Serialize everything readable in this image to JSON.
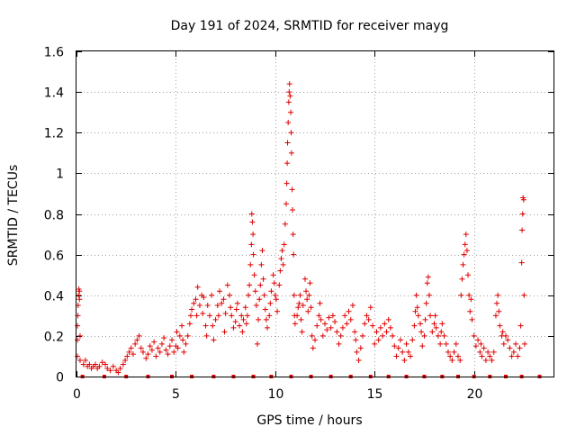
{
  "colors": {
    "series": "#e00000",
    "grid": "#a0a0a0",
    "axis": "#000000"
  },
  "chart_data": {
    "type": "scatter",
    "title": "Day 191 of 2024, SRMTID for receiver mayg",
    "xlabel": "GPS time / hours",
    "ylabel": "SRMTID / TECUs",
    "xlim": [
      0,
      24
    ],
    "ylim": [
      0,
      1.6
    ],
    "xticks": [
      0,
      5,
      10,
      15,
      20
    ],
    "xtick_labels": [
      "0",
      "5",
      "10",
      "15",
      "20"
    ],
    "yticks": [
      0,
      0.2,
      0.4,
      0.6,
      0.8,
      1.0,
      1.2,
      1.4,
      1.6
    ],
    "ytick_labels": [
      "0",
      "0.2",
      "0.4",
      "0.6",
      "0.8",
      "1",
      "1.2",
      "1.4",
      "1.6"
    ],
    "grid": true,
    "legend": "none",
    "marker": "+",
    "series": [
      {
        "name": "SRMTID",
        "points": [
          [
            0.05,
            0.1
          ],
          [
            0.05,
            0.18
          ],
          [
            0.05,
            0.25
          ],
          [
            0.07,
            0.3
          ],
          [
            0.08,
            0.35
          ],
          [
            0.1,
            0.4
          ],
          [
            0.12,
            0.43
          ],
          [
            0.15,
            0.38
          ],
          [
            0.15,
            0.42
          ],
          [
            0.18,
            0.2
          ],
          [
            0.18,
            0.08
          ],
          [
            0.35,
            0.06
          ],
          [
            0.45,
            0.08
          ],
          [
            0.55,
            0.05
          ],
          [
            0.65,
            0.06
          ],
          [
            0.75,
            0.04
          ],
          [
            0.85,
            0.05
          ],
          [
            0.95,
            0.06
          ],
          [
            1.05,
            0.04
          ],
          [
            1.15,
            0.05
          ],
          [
            1.3,
            0.07
          ],
          [
            1.45,
            0.06
          ],
          [
            1.55,
            0.04
          ],
          [
            1.7,
            0.03
          ],
          [
            1.85,
            0.05
          ],
          [
            2.0,
            0.03
          ],
          [
            2.1,
            0.02
          ],
          [
            2.2,
            0.04
          ],
          [
            2.35,
            0.06
          ],
          [
            2.45,
            0.08
          ],
          [
            2.55,
            0.1
          ],
          [
            2.65,
            0.12
          ],
          [
            2.75,
            0.14
          ],
          [
            2.85,
            0.11
          ],
          [
            2.95,
            0.16
          ],
          [
            3.05,
            0.18
          ],
          [
            3.15,
            0.2
          ],
          [
            3.25,
            0.14
          ],
          [
            3.35,
            0.12
          ],
          [
            3.5,
            0.09
          ],
          [
            3.6,
            0.11
          ],
          [
            3.7,
            0.15
          ],
          [
            3.8,
            0.13
          ],
          [
            3.9,
            0.17
          ],
          [
            4.0,
            0.1
          ],
          [
            4.1,
            0.14
          ],
          [
            4.2,
            0.12
          ],
          [
            4.3,
            0.16
          ],
          [
            4.4,
            0.19
          ],
          [
            4.5,
            0.13
          ],
          [
            4.6,
            0.11
          ],
          [
            4.7,
            0.15
          ],
          [
            4.8,
            0.18
          ],
          [
            4.9,
            0.12
          ],
          [
            5.0,
            0.15
          ],
          [
            5.05,
            0.22
          ],
          [
            5.1,
            0.14
          ],
          [
            5.2,
            0.2
          ],
          [
            5.3,
            0.25
          ],
          [
            5.35,
            0.18
          ],
          [
            5.4,
            0.12
          ],
          [
            5.5,
            0.16
          ],
          [
            5.6,
            0.2
          ],
          [
            5.7,
            0.26
          ],
          [
            5.75,
            0.3
          ],
          [
            5.8,
            0.33
          ],
          [
            5.9,
            0.36
          ],
          [
            6.0,
            0.38
          ],
          [
            6.05,
            0.3
          ],
          [
            6.1,
            0.44
          ],
          [
            6.2,
            0.35
          ],
          [
            6.3,
            0.4
          ],
          [
            6.35,
            0.31
          ],
          [
            6.4,
            0.39
          ],
          [
            6.5,
            0.25
          ],
          [
            6.55,
            0.2
          ],
          [
            6.6,
            0.35
          ],
          [
            6.7,
            0.3
          ],
          [
            6.8,
            0.4
          ],
          [
            6.85,
            0.25
          ],
          [
            6.9,
            0.18
          ],
          [
            7.0,
            0.28
          ],
          [
            7.1,
            0.35
          ],
          [
            7.15,
            0.3
          ],
          [
            7.2,
            0.42
          ],
          [
            7.3,
            0.36
          ],
          [
            7.4,
            0.38
          ],
          [
            7.45,
            0.22
          ],
          [
            7.5,
            0.31
          ],
          [
            7.6,
            0.45
          ],
          [
            7.7,
            0.4
          ],
          [
            7.75,
            0.34
          ],
          [
            7.8,
            0.3
          ],
          [
            7.9,
            0.24
          ],
          [
            8.0,
            0.27
          ],
          [
            8.05,
            0.33
          ],
          [
            8.1,
            0.36
          ],
          [
            8.2,
            0.25
          ],
          [
            8.3,
            0.3
          ],
          [
            8.35,
            0.22
          ],
          [
            8.4,
            0.28
          ],
          [
            8.5,
            0.34
          ],
          [
            8.55,
            0.26
          ],
          [
            8.6,
            0.3
          ],
          [
            8.65,
            0.4
          ],
          [
            8.7,
            0.45
          ],
          [
            8.75,
            0.55
          ],
          [
            8.8,
            0.65
          ],
          [
            8.82,
            0.8
          ],
          [
            8.85,
            0.76
          ],
          [
            8.88,
            0.7
          ],
          [
            8.9,
            0.6
          ],
          [
            8.95,
            0.5
          ],
          [
            9.0,
            0.42
          ],
          [
            9.05,
            0.35
          ],
          [
            9.1,
            0.16
          ],
          [
            9.15,
            0.28
          ],
          [
            9.2,
            0.38
          ],
          [
            9.25,
            0.45
          ],
          [
            9.3,
            0.55
          ],
          [
            9.35,
            0.62
          ],
          [
            9.4,
            0.48
          ],
          [
            9.45,
            0.4
          ],
          [
            9.5,
            0.33
          ],
          [
            9.55,
            0.28
          ],
          [
            9.6,
            0.24
          ],
          [
            9.7,
            0.3
          ],
          [
            9.75,
            0.36
          ],
          [
            9.8,
            0.42
          ],
          [
            9.9,
            0.5
          ],
          [
            9.95,
            0.46
          ],
          [
            10.0,
            0.4
          ],
          [
            10.05,
            0.38
          ],
          [
            10.1,
            0.32
          ],
          [
            10.2,
            0.45
          ],
          [
            10.25,
            0.52
          ],
          [
            10.3,
            0.58
          ],
          [
            10.35,
            0.62
          ],
          [
            10.4,
            0.55
          ],
          [
            10.45,
            0.65
          ],
          [
            10.5,
            0.75
          ],
          [
            10.55,
            0.85
          ],
          [
            10.58,
            0.95
          ],
          [
            10.6,
            1.05
          ],
          [
            10.62,
            1.15
          ],
          [
            10.65,
            1.25
          ],
          [
            10.68,
            1.35
          ],
          [
            10.7,
            1.4
          ],
          [
            10.72,
            1.44
          ],
          [
            10.75,
            1.38
          ],
          [
            10.78,
            1.3
          ],
          [
            10.8,
            1.2
          ],
          [
            10.82,
            1.1
          ],
          [
            10.85,
            0.92
          ],
          [
            10.87,
            0.82
          ],
          [
            10.9,
            0.7
          ],
          [
            10.92,
            0.6
          ],
          [
            10.95,
            0.4
          ],
          [
            10.97,
            0.3
          ],
          [
            11.0,
            0.26
          ],
          [
            11.1,
            0.3
          ],
          [
            11.15,
            0.34
          ],
          [
            11.2,
            0.36
          ],
          [
            11.25,
            0.4
          ],
          [
            11.3,
            0.28
          ],
          [
            11.35,
            0.22
          ],
          [
            11.4,
            0.35
          ],
          [
            11.5,
            0.48
          ],
          [
            11.55,
            0.42
          ],
          [
            11.6,
            0.38
          ],
          [
            11.65,
            0.32
          ],
          [
            11.7,
            0.4
          ],
          [
            11.75,
            0.46
          ],
          [
            11.8,
            0.34
          ],
          [
            11.85,
            0.2
          ],
          [
            11.9,
            0.14
          ],
          [
            12.0,
            0.18
          ],
          [
            12.1,
            0.25
          ],
          [
            12.2,
            0.3
          ],
          [
            12.25,
            0.36
          ],
          [
            12.3,
            0.28
          ],
          [
            12.4,
            0.2
          ],
          [
            12.5,
            0.26
          ],
          [
            12.6,
            0.23
          ],
          [
            12.7,
            0.29
          ],
          [
            12.8,
            0.24
          ],
          [
            12.9,
            0.3
          ],
          [
            13.0,
            0.27
          ],
          [
            13.1,
            0.22
          ],
          [
            13.2,
            0.16
          ],
          [
            13.3,
            0.2
          ],
          [
            13.4,
            0.24
          ],
          [
            13.5,
            0.3
          ],
          [
            13.6,
            0.26
          ],
          [
            13.7,
            0.32
          ],
          [
            13.8,
            0.28
          ],
          [
            13.9,
            0.35
          ],
          [
            14.0,
            0.22
          ],
          [
            14.05,
            0.18
          ],
          [
            14.1,
            0.12
          ],
          [
            14.2,
            0.08
          ],
          [
            14.3,
            0.14
          ],
          [
            14.4,
            0.2
          ],
          [
            14.5,
            0.26
          ],
          [
            14.6,
            0.3
          ],
          [
            14.7,
            0.28
          ],
          [
            14.8,
            0.34
          ],
          [
            14.9,
            0.25
          ],
          [
            15.0,
            0.16
          ],
          [
            15.1,
            0.22
          ],
          [
            15.2,
            0.18
          ],
          [
            15.3,
            0.24
          ],
          [
            15.4,
            0.2
          ],
          [
            15.5,
            0.26
          ],
          [
            15.6,
            0.22
          ],
          [
            15.7,
            0.28
          ],
          [
            15.8,
            0.24
          ],
          [
            15.9,
            0.2
          ],
          [
            16.0,
            0.15
          ],
          [
            16.1,
            0.1
          ],
          [
            16.2,
            0.14
          ],
          [
            16.3,
            0.18
          ],
          [
            16.4,
            0.12
          ],
          [
            16.5,
            0.08
          ],
          [
            16.6,
            0.16
          ],
          [
            16.7,
            0.12
          ],
          [
            16.8,
            0.1
          ],
          [
            16.9,
            0.18
          ],
          [
            17.0,
            0.25
          ],
          [
            17.05,
            0.32
          ],
          [
            17.1,
            0.4
          ],
          [
            17.15,
            0.34
          ],
          [
            17.2,
            0.3
          ],
          [
            17.3,
            0.26
          ],
          [
            17.35,
            0.22
          ],
          [
            17.4,
            0.15
          ],
          [
            17.5,
            0.2
          ],
          [
            17.55,
            0.28
          ],
          [
            17.6,
            0.36
          ],
          [
            17.65,
            0.46
          ],
          [
            17.7,
            0.49
          ],
          [
            17.75,
            0.4
          ],
          [
            17.8,
            0.3
          ],
          [
            17.9,
            0.22
          ],
          [
            18.0,
            0.26
          ],
          [
            18.05,
            0.3
          ],
          [
            18.1,
            0.24
          ],
          [
            18.2,
            0.2
          ],
          [
            18.3,
            0.16
          ],
          [
            18.35,
            0.22
          ],
          [
            18.4,
            0.26
          ],
          [
            18.5,
            0.2
          ],
          [
            18.6,
            0.16
          ],
          [
            18.7,
            0.12
          ],
          [
            18.8,
            0.1
          ],
          [
            18.9,
            0.08
          ],
          [
            19.0,
            0.12
          ],
          [
            19.1,
            0.16
          ],
          [
            19.2,
            0.1
          ],
          [
            19.3,
            0.08
          ],
          [
            19.35,
            0.4
          ],
          [
            19.4,
            0.48
          ],
          [
            19.45,
            0.55
          ],
          [
            19.5,
            0.6
          ],
          [
            19.55,
            0.65
          ],
          [
            19.6,
            0.7
          ],
          [
            19.65,
            0.62
          ],
          [
            19.7,
            0.5
          ],
          [
            19.75,
            0.4
          ],
          [
            19.8,
            0.32
          ],
          [
            19.85,
            0.38
          ],
          [
            19.9,
            0.28
          ],
          [
            20.0,
            0.2
          ],
          [
            20.1,
            0.15
          ],
          [
            20.2,
            0.18
          ],
          [
            20.3,
            0.12
          ],
          [
            20.35,
            0.16
          ],
          [
            20.4,
            0.1
          ],
          [
            20.5,
            0.14
          ],
          [
            20.6,
            0.08
          ],
          [
            20.7,
            0.12
          ],
          [
            20.8,
            0.1
          ],
          [
            20.9,
            0.08
          ],
          [
            21.0,
            0.12
          ],
          [
            21.1,
            0.3
          ],
          [
            21.15,
            0.36
          ],
          [
            21.2,
            0.4
          ],
          [
            21.25,
            0.32
          ],
          [
            21.3,
            0.25
          ],
          [
            21.4,
            0.2
          ],
          [
            21.45,
            0.22
          ],
          [
            21.5,
            0.16
          ],
          [
            21.6,
            0.2
          ],
          [
            21.7,
            0.18
          ],
          [
            21.8,
            0.14
          ],
          [
            21.9,
            0.1
          ],
          [
            22.0,
            0.12
          ],
          [
            22.1,
            0.16
          ],
          [
            22.2,
            0.1
          ],
          [
            22.3,
            0.14
          ],
          [
            22.35,
            0.25
          ],
          [
            22.4,
            0.56
          ],
          [
            22.42,
            0.72
          ],
          [
            22.45,
            0.8
          ],
          [
            22.47,
            0.88
          ],
          [
            22.5,
            0.87
          ],
          [
            22.52,
            0.4
          ],
          [
            22.55,
            0.16
          ]
        ]
      }
    ],
    "baseline_markers": {
      "y": 0,
      "x": [
        0.3,
        1.4,
        2.5,
        3.6,
        4.8,
        5.8,
        6.9,
        7.9,
        8.9,
        9.8,
        10.8,
        11.8,
        12.8,
        13.8,
        14.8,
        15.7,
        16.6,
        17.5,
        18.4,
        19.2,
        20.0,
        20.8,
        21.6,
        22.4,
        23.3
      ]
    }
  }
}
